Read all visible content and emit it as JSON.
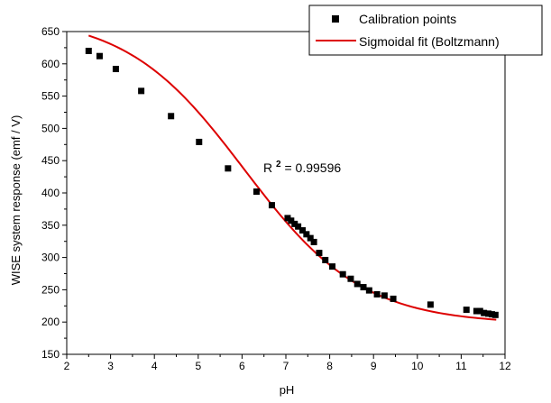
{
  "chart_data": {
    "type": "scatter",
    "xlabel": "pH",
    "ylabel": "WISE system response (emf / V)",
    "xlim": [
      2,
      12
    ],
    "ylim": [
      150,
      650
    ],
    "x_ticks": [
      "2",
      "3",
      "4",
      "5",
      "6",
      "7",
      "8",
      "9",
      "10",
      "11",
      "12"
    ],
    "y_ticks": [
      "150",
      "200",
      "250",
      "300",
      "350",
      "400",
      "450",
      "500",
      "550",
      "600",
      "650"
    ],
    "grid": false,
    "legend_position": "top-right",
    "annotation": {
      "prefix": "R",
      "superscript": "2",
      "suffix": "= 0.99596"
    },
    "series": [
      {
        "name": "Calibration points",
        "marker": "square",
        "color": "#000000",
        "x": [
          2.5,
          2.75,
          3.12,
          3.7,
          4.38,
          5.02,
          5.68,
          6.33,
          6.68,
          7.04,
          7.12,
          7.2,
          7.28,
          7.38,
          7.47,
          7.56,
          7.64,
          7.76,
          7.9,
          8.06,
          8.3,
          8.48,
          8.63,
          8.77,
          8.9,
          9.08,
          9.25,
          9.45,
          10.3,
          11.12,
          11.35,
          11.43,
          11.52,
          11.62,
          11.7,
          11.78
        ],
        "y": [
          620,
          612,
          592,
          558,
          519,
          479,
          438,
          402,
          381,
          361,
          357,
          352,
          348,
          342,
          336,
          330,
          324,
          307,
          296,
          286,
          274,
          267,
          259,
          254,
          249,
          243,
          241,
          236,
          227,
          219,
          217,
          217,
          214,
          213,
          212,
          211
        ]
      },
      {
        "name": "Sigmoidal fit (Boltzmann)",
        "type": "line",
        "color": "#dd0000",
        "model": "boltzmann",
        "params": {
          "A1": 676,
          "A2": 197,
          "x0": 6.05,
          "dx": 1.35
        },
        "x_range": [
          2.5,
          11.8
        ]
      }
    ]
  }
}
